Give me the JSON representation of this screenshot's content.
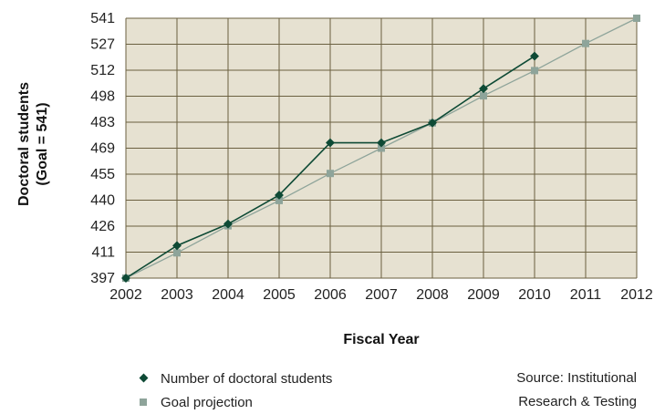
{
  "chart_data": {
    "type": "line",
    "xlabel": "Fiscal Year",
    "ylabel_line1": "Doctoral students",
    "ylabel_line2": "(Goal = 541)",
    "x": [
      2002,
      2003,
      2004,
      2005,
      2006,
      2007,
      2008,
      2009,
      2010,
      2011,
      2012
    ],
    "y_ticks": [
      397,
      411,
      426,
      440,
      455,
      469,
      483,
      498,
      512,
      527,
      541
    ],
    "ylim": [
      397,
      541
    ],
    "grid": true,
    "colors": {
      "background": "#e6e1d1",
      "grid": "#6b6040",
      "actual": "#0e4a35",
      "goal": "#8ea49a"
    },
    "series": [
      {
        "name": "Number of doctoral students",
        "marker": "diamond",
        "x": [
          2002,
          2003,
          2004,
          2005,
          2006,
          2007,
          2008,
          2009,
          2010
        ],
        "values": [
          397,
          415,
          427,
          443,
          472,
          472,
          483,
          502,
          520
        ]
      },
      {
        "name": "Goal projection",
        "marker": "square",
        "x": [
          2002,
          2003,
          2004,
          2005,
          2006,
          2007,
          2008,
          2009,
          2010,
          2011,
          2012
        ],
        "values": [
          397,
          411,
          426,
          440,
          455,
          469,
          483,
          498,
          512,
          527,
          541
        ]
      }
    ]
  },
  "source": {
    "line1": "Source: Institutional",
    "line2": "Research & Testing"
  }
}
